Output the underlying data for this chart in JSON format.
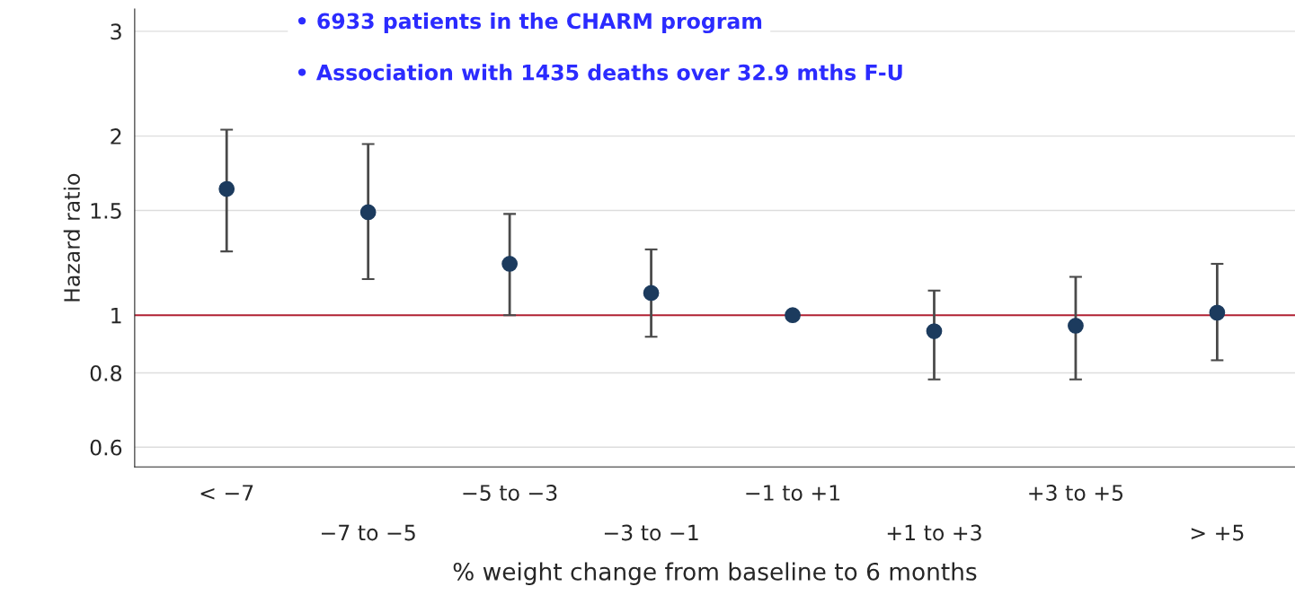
{
  "chart_data": {
    "type": "scatter",
    "xlabel": "% weight change from baseline to 6 months",
    "ylabel": "Hazard ratio",
    "annotations": [
      "• 6933 patients in the CHARM program",
      "• Association with 1435 deaths over 32.9 mths F-U"
    ],
    "categories": [
      "< −7",
      "−7 to −5",
      "−5 to −3",
      "−3 to −1",
      "−1 to +1",
      "+1 to +3",
      "+3 to +5",
      "> +5"
    ],
    "series": [
      {
        "color": "#1c3b5e",
        "values": [
          1.63,
          1.49,
          1.22,
          1.09,
          1.0,
          0.94,
          0.96,
          1.01
        ],
        "errors": [
          [
            1.28,
            2.05
          ],
          [
            1.15,
            1.94
          ],
          [
            1.0,
            1.48
          ],
          [
            0.92,
            1.29
          ],
          null,
          [
            0.78,
            1.1
          ],
          [
            0.78,
            1.16
          ],
          [
            0.84,
            1.22
          ]
        ]
      }
    ],
    "log": "y",
    "ylim": [
      0.556,
      3.27
    ],
    "yticks": [
      0.6,
      0.8,
      1,
      1.5,
      2,
      3
    ],
    "ref_lines": [
      {
        "axis": "y",
        "value": 1,
        "color": "#b22234"
      }
    ],
    "grid": "y",
    "marker": "circle"
  }
}
